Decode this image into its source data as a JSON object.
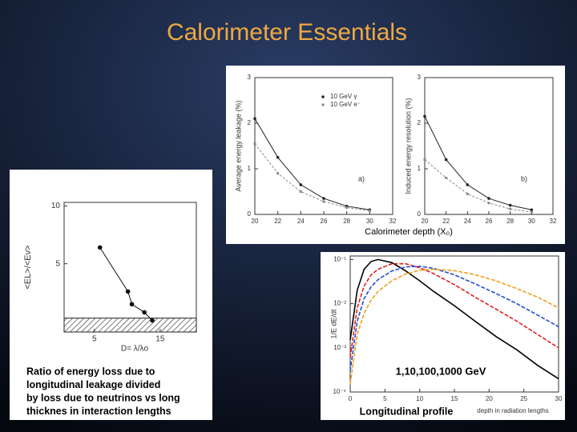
{
  "title": "Calorimeter Essentials",
  "chart_data": [
    {
      "type": "line",
      "ylabel": "Average energy leakage (%)",
      "xlabel": "Calorimeter depth (X₀)",
      "annotation": "a)",
      "x": [
        20,
        22,
        24,
        26,
        28,
        30
      ],
      "xlim": [
        20,
        32
      ],
      "xticks": [
        20,
        22,
        24,
        26,
        28,
        30,
        32
      ],
      "ylim": [
        0,
        3
      ],
      "yticks": [
        0,
        1,
        2,
        3
      ],
      "series": [
        {
          "name": "10 GeV γ",
          "color": "#222222",
          "dash": false,
          "marker": "circle",
          "values": [
            2.1,
            1.25,
            0.65,
            0.35,
            0.18,
            0.1
          ]
        },
        {
          "name": "10 GeV e⁻",
          "color": "#888888",
          "dash": true,
          "marker": "square",
          "values": [
            1.55,
            0.9,
            0.5,
            0.28,
            0.15,
            0.08
          ]
        }
      ]
    },
    {
      "type": "line",
      "ylabel": "Induced energy resolution (%)",
      "annotation": "b)",
      "x": [
        20,
        22,
        24,
        26,
        28,
        30
      ],
      "xlim": [
        20,
        32
      ],
      "xticks": [
        20,
        22,
        24,
        26,
        28,
        30,
        32
      ],
      "ylim": [
        0,
        3
      ],
      "yticks": [
        0,
        1,
        2,
        3
      ],
      "series": [
        {
          "color": "#222222",
          "dash": false,
          "marker": "circle",
          "values": [
            2.15,
            1.2,
            0.65,
            0.35,
            0.2,
            0.1
          ]
        },
        {
          "color": "#888888",
          "dash": true,
          "marker": "square",
          "values": [
            1.2,
            0.8,
            0.45,
            0.25,
            0.12,
            0.05
          ]
        }
      ]
    },
    {
      "type": "line",
      "ylabel": "<EL>/<Eν>",
      "xlabel": "D= λ/λo",
      "notes": [
        "Ratio of energy loss due to",
        "longitudinal leakage divided",
        "by loss due to neutrinos vs long",
        "thicknes in interaction lengths"
      ],
      "x": [
        5.85,
        10.1,
        10.7,
        12.6,
        13.8
      ],
      "xlim": [
        0.4,
        20.5
      ],
      "xticks": [
        5,
        15
      ],
      "ylim": [
        -0.9,
        10.3
      ],
      "yticks": [
        5,
        10
      ],
      "series": [
        {
          "color": "#111111",
          "dash": false,
          "marker": "circle",
          "values": [
            6.4,
            2.6,
            1.5,
            0.8,
            0.1
          ]
        }
      ]
    },
    {
      "type": "line",
      "log_y": true,
      "ylabel": "1/E dE/dt",
      "xlabel": "depth in radiation lengths",
      "annotation": "1,10,100,1000 GeV",
      "caption": "Longitudinal profile",
      "x": [
        0,
        1,
        2,
        3,
        4,
        6,
        8,
        10,
        12,
        15,
        18,
        21,
        24,
        27,
        30
      ],
      "xlim": [
        0,
        30
      ],
      "xticks": [
        0,
        5,
        10,
        15,
        20,
        25,
        30
      ],
      "ylim": [
        0.0001,
        0.12
      ],
      "yticks": [
        {
          "value": 0.1,
          "label": "10⁻¹"
        },
        {
          "value": 0.01,
          "label": "10⁻²"
        },
        {
          "value": 0.001,
          "label": "10⁻³"
        },
        {
          "value": 0.0001,
          "label": "10⁻⁴"
        }
      ],
      "series": [
        {
          "color": "#000000",
          "dash": false,
          "values": [
            0.0015,
            0.02,
            0.06,
            0.09,
            0.1,
            0.085,
            0.055,
            0.033,
            0.019,
            0.009,
            0.004,
            0.0018,
            0.0009,
            0.0004,
            0.0002
          ]
        },
        {
          "color": "#e02020",
          "dash": true,
          "values": [
            0.0006,
            0.008,
            0.025,
            0.045,
            0.06,
            0.08,
            0.08,
            0.065,
            0.048,
            0.027,
            0.014,
            0.0075,
            0.004,
            0.002,
            0.001
          ]
        },
        {
          "color": "#2050d0",
          "dash": true,
          "values": [
            0.0003,
            0.004,
            0.013,
            0.024,
            0.035,
            0.055,
            0.068,
            0.07,
            0.063,
            0.045,
            0.028,
            0.017,
            0.01,
            0.0055,
            0.003
          ]
        },
        {
          "color": "#f0a020",
          "dash": true,
          "values": [
            0.00015,
            0.002,
            0.006,
            0.012,
            0.019,
            0.033,
            0.047,
            0.057,
            0.06,
            0.056,
            0.045,
            0.033,
            0.022,
            0.014,
            0.008
          ]
        }
      ]
    }
  ]
}
